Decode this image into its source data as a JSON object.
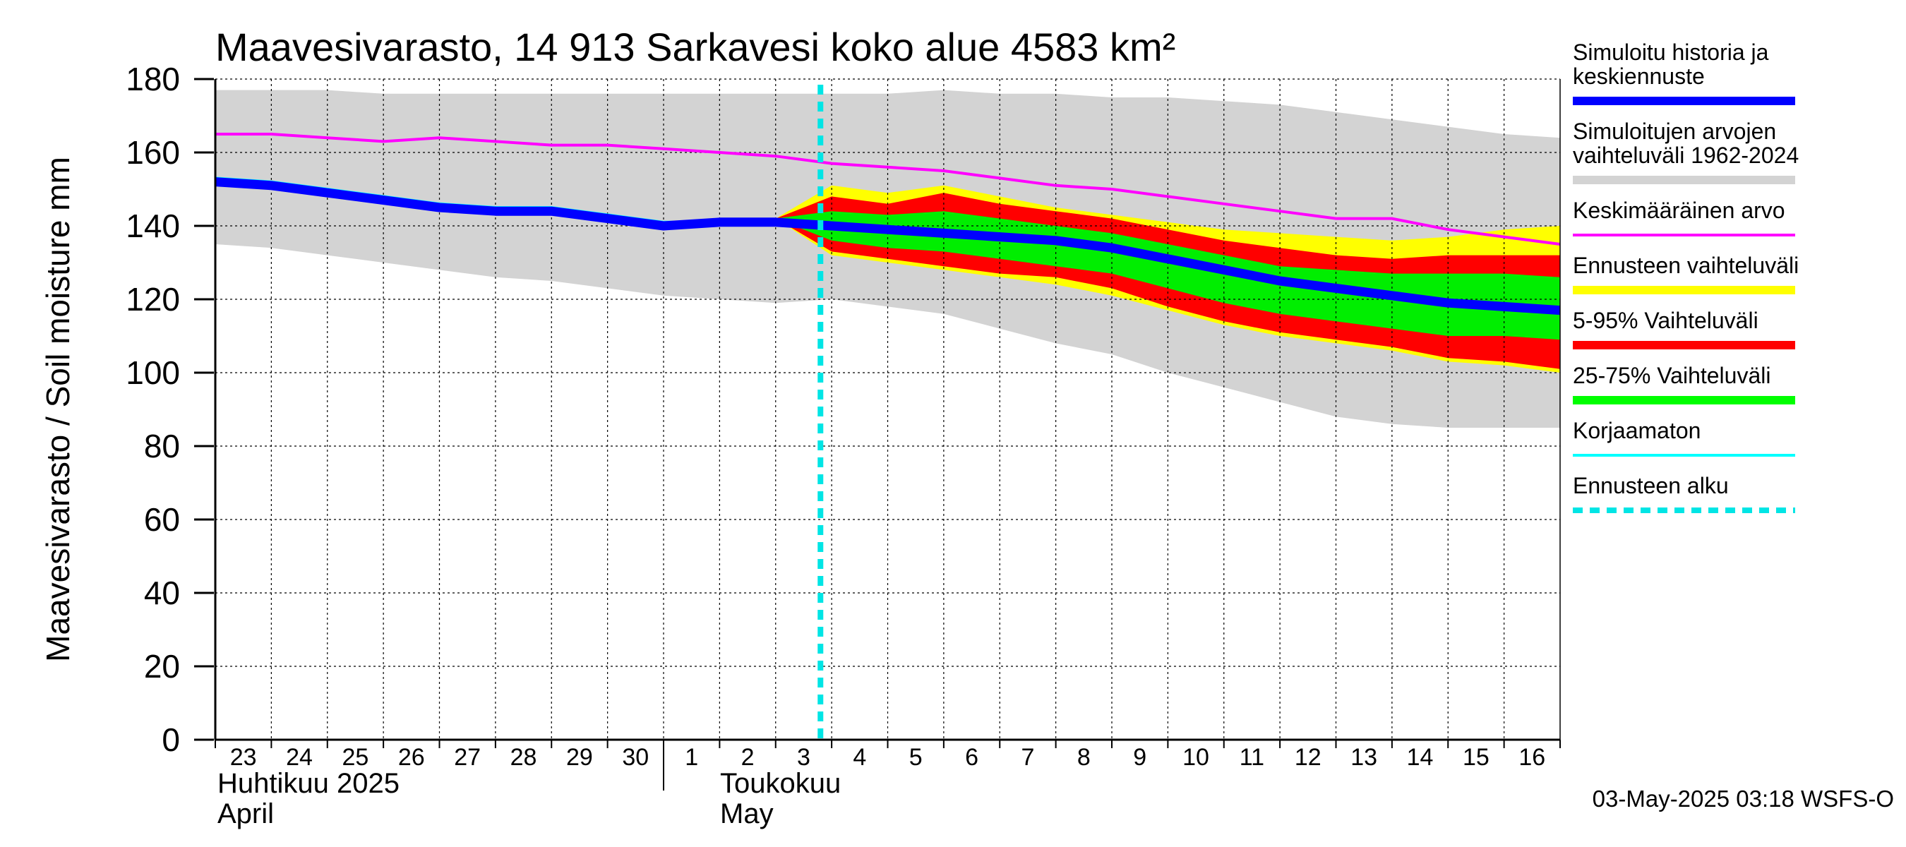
{
  "chart_data": {
    "type": "area",
    "title": "Maavesivarasto, 14 913 Sarkavesi koko alue 4583 km²",
    "ylabel": "Maavesivarasto / Soil moisture   mm",
    "ylim": [
      0,
      180
    ],
    "yticks": [
      0,
      20,
      40,
      60,
      80,
      100,
      120,
      140,
      160,
      180
    ],
    "grid": true,
    "legend_position": "right",
    "x_day_labels": [
      "23",
      "24",
      "25",
      "26",
      "27",
      "28",
      "29",
      "30",
      "1",
      "2",
      "3",
      "4",
      "5",
      "6",
      "7",
      "8",
      "9",
      "10",
      "11",
      "12",
      "13",
      "14",
      "15",
      "16"
    ],
    "month_labels": [
      {
        "fi": "Huhtikuu  2025",
        "en": "April"
      },
      {
        "fi": "Toukokuu",
        "en": "May"
      }
    ],
    "forecast_start_day": 10.8,
    "x_day_index": [
      0,
      1,
      2,
      3,
      4,
      5,
      6,
      7,
      8,
      9,
      10,
      11,
      12,
      13,
      14,
      15,
      16,
      17,
      18,
      19,
      20,
      21,
      22,
      23,
      24
    ],
    "hist_range": {
      "upper": [
        177,
        177,
        177,
        176,
        176,
        176,
        176,
        176,
        176,
        176,
        176,
        176,
        176,
        177,
        176,
        176,
        175,
        175,
        174,
        173,
        171,
        169,
        167,
        165,
        164
      ],
      "lower": [
        135,
        134,
        132,
        130,
        128,
        126,
        125,
        123,
        121,
        120,
        119,
        120,
        118,
        116,
        112,
        108,
        105,
        100,
        96,
        92,
        88,
        86,
        85,
        85,
        85
      ]
    },
    "mean": [
      165,
      165,
      164,
      163,
      164,
      163,
      162,
      162,
      161,
      160,
      159,
      157,
      156,
      155,
      153,
      151,
      150,
      148,
      146,
      144,
      142,
      142,
      139,
      137,
      135
    ],
    "forecast_x": [
      10,
      11,
      12,
      13,
      14,
      15,
      16,
      17,
      18,
      19,
      20,
      21,
      22,
      23,
      24
    ],
    "forecast_range": {
      "upper": [
        142,
        151,
        149,
        151,
        148,
        145,
        143,
        141,
        139,
        138,
        137,
        136,
        137,
        139,
        140
      ],
      "lower": [
        142,
        132,
        130,
        128,
        126,
        124,
        121,
        117,
        113,
        110,
        108,
        106,
        103,
        102,
        100
      ]
    },
    "p5_95": {
      "upper": [
        142,
        148,
        146,
        149,
        146,
        144,
        142,
        139,
        136,
        134,
        132,
        131,
        132,
        132,
        132
      ],
      "lower": [
        142,
        133,
        131,
        129,
        127,
        126,
        123,
        118,
        114,
        111,
        109,
        107,
        104,
        103,
        101
      ]
    },
    "p25_75": {
      "upper": [
        142,
        144,
        143,
        144,
        142,
        140,
        138,
        135,
        132,
        129,
        128,
        127,
        127,
        127,
        126
      ],
      "lower": [
        142,
        136,
        134,
        133,
        131,
        129,
        127,
        123,
        119,
        116,
        114,
        112,
        110,
        110,
        109
      ]
    },
    "median_forecast": [
      152,
      151,
      149,
      147,
      145,
      144,
      144,
      142,
      140,
      141,
      141,
      140,
      139,
      138,
      137,
      136,
      134,
      131,
      128,
      125,
      123,
      121,
      119,
      118,
      117
    ],
    "uncorrected": [
      153,
      152,
      150,
      148,
      146,
      145,
      145,
      143,
      141,
      141,
      141
    ],
    "legend": [
      {
        "label": "Simuloitu historia ja keskiennuste",
        "color": "#0000ff",
        "kind": "thick"
      },
      {
        "label": "Simuloitujen arvojen vaihteluväli 1962-2024",
        "color": "#d3d3d3",
        "kind": "band"
      },
      {
        "label": "Keskimääräinen arvo",
        "color": "#ff00ff",
        "kind": "line"
      },
      {
        "label": "Ennusteen vaihteluväli",
        "color": "#ffff00",
        "kind": "band"
      },
      {
        "label": "5-95% Vaihteluväli",
        "color": "#ff0000",
        "kind": "band"
      },
      {
        "label": "25-75% Vaihteluväli",
        "color": "#00ff00",
        "kind": "band"
      },
      {
        "label": "Korjaamaton",
        "color": "#00ffff",
        "kind": "line"
      },
      {
        "label": "Ennusteen alku",
        "color": "#00e5e5",
        "kind": "dashed"
      }
    ],
    "footer": "03-May-2025 03:18 WSFS-O"
  }
}
